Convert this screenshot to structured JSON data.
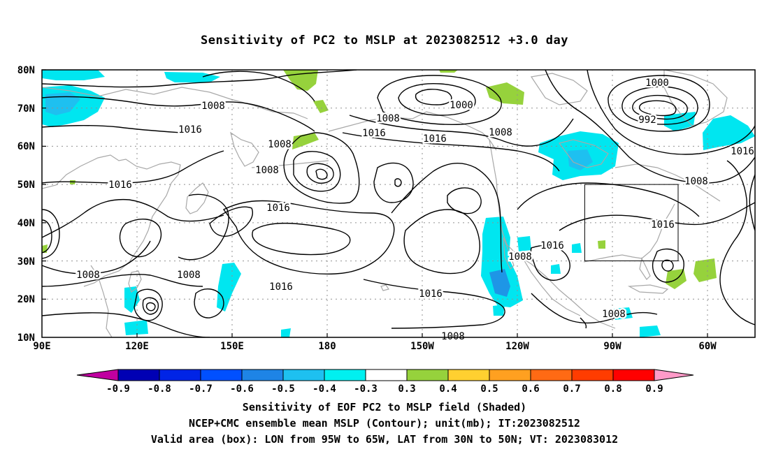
{
  "title": "Sensitivity of PC2 to MSLP at 2023082512 +3.0 day",
  "lat_labels": [
    "80N",
    "70N",
    "60N",
    "50N",
    "40N",
    "30N",
    "20N",
    "10N"
  ],
  "lon_labels": [
    "90E",
    "120E",
    "150E",
    "180",
    "150W",
    "120W",
    "90W",
    "60W"
  ],
  "contour_labels": [
    "1008",
    "1016",
    "1016",
    "1008",
    "1008",
    "1016",
    "1000",
    "1008",
    "1016",
    "1016",
    "1008",
    "1000",
    "992",
    "1016",
    "1008",
    "1016",
    "1016",
    "1008",
    "1008",
    "1016",
    "1008",
    "1016",
    "1008",
    "1008",
    "1016",
    "1008"
  ],
  "colorbar": {
    "labels": [
      "-0.9",
      "-0.8",
      "-0.7",
      "-0.6",
      "-0.5",
      "-0.4",
      "-0.3",
      "0.3",
      "0.4",
      "0.5",
      "0.6",
      "0.7",
      "0.8",
      "0.9"
    ],
    "colors": [
      "#c000a0",
      "#0000b4",
      "#0024e6",
      "#0050ff",
      "#1e84e6",
      "#1ec0f0",
      "#00f0f0",
      "#ffffff",
      "#96d23c",
      "#ffd030",
      "#ffa020",
      "#ff6a14",
      "#ff3c00",
      "#ff0000",
      "#ff9ac8"
    ]
  },
  "shading_colors": {
    "neg_weak": "#00e6f0",
    "neg_mid": "#1ec0f0",
    "neg_strong": "#1e96e6",
    "pos_weak": "#96d23c"
  },
  "valid_box": {
    "lon_min": -95,
    "lon_max": -65,
    "lat_min": 30,
    "lat_max": 50
  },
  "footer": {
    "line1": "Sensitivity of EOF PC2 to MSLP field (Shaded)",
    "line2": "NCEP+CMC ensemble mean MSLP (Contour); unit(mb); IT:2023082512",
    "line3": "Valid area (box): LON from 95W to 65W, LAT from 30N to 50N; VT: 2023083012"
  }
}
